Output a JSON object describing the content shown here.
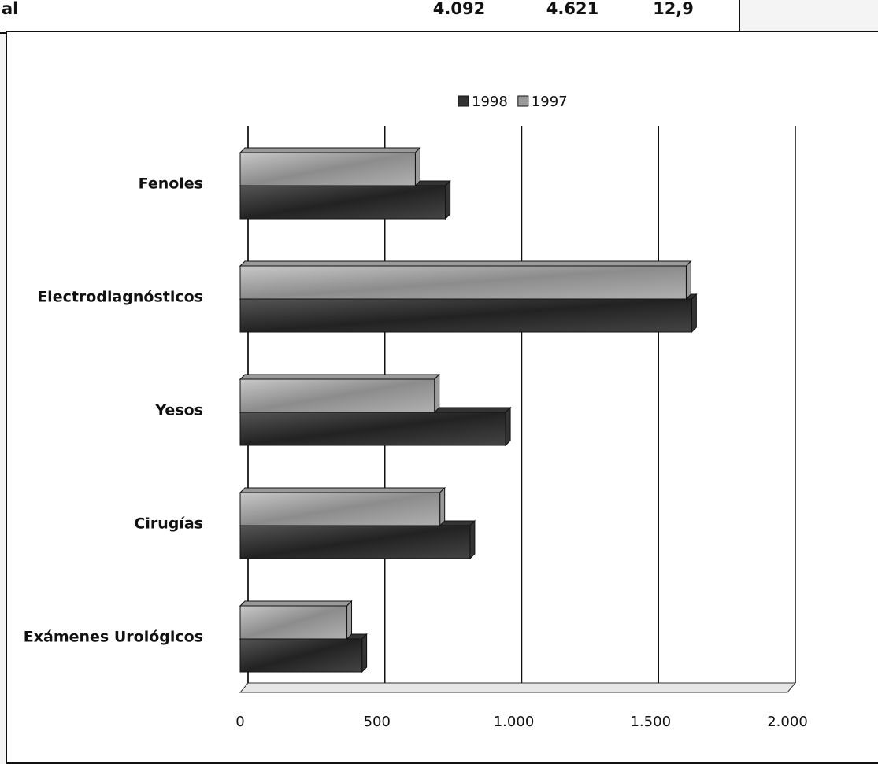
{
  "table_fragment": {
    "cells": [
      "al",
      "4.092",
      "4.621",
      "12,9"
    ]
  },
  "chart_data": {
    "type": "hbar",
    "categories": [
      "Fenoles",
      "Electrodiagnósticos",
      "Yesos",
      "Cirugías",
      "Exámenes  Urológicos"
    ],
    "series": [
      {
        "name": "1998",
        "color": "#333333",
        "values": [
          750,
          1650,
          970,
          840,
          445
        ]
      },
      {
        "name": "1997",
        "color": "#9a9a9a",
        "values": [
          640,
          1630,
          710,
          730,
          390
        ]
      }
    ],
    "xlim": [
      0,
      2000
    ],
    "xticks": [
      0,
      500,
      {
        "value": 1000,
        "label": "1.000"
      },
      {
        "value": 1500,
        "label": "1.500"
      },
      {
        "value": 2000,
        "label": "2.000"
      }
    ],
    "grid": true,
    "legend": "top"
  }
}
